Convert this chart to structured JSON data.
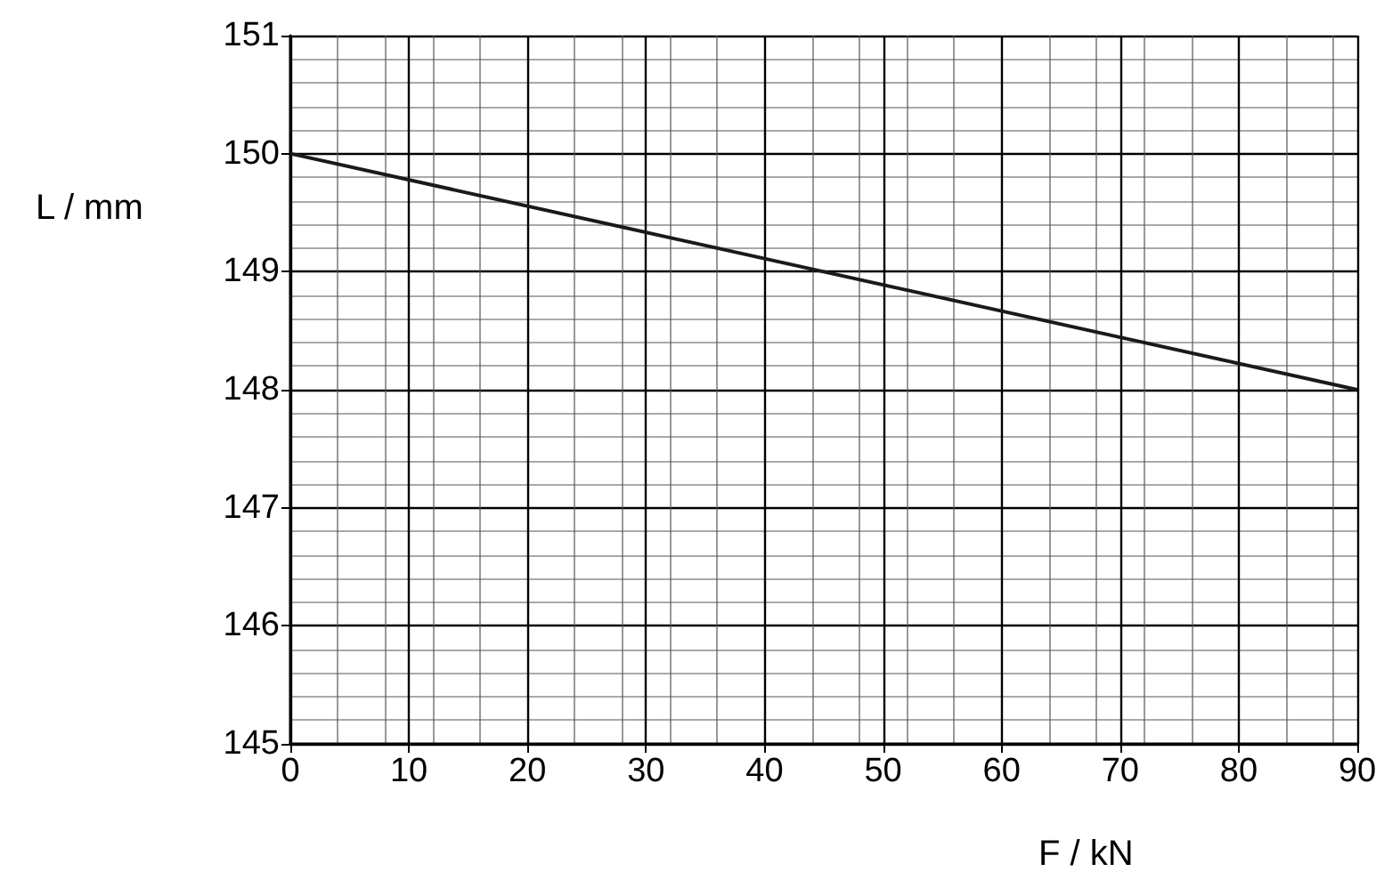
{
  "chart_data": {
    "type": "line",
    "xlabel": "F / kN",
    "ylabel": "L / mm",
    "x": [
      0,
      90
    ],
    "series": [
      {
        "color": "#1a1a1a",
        "values": [
          150,
          148
        ]
      }
    ],
    "xlim": [
      0,
      90
    ],
    "xticks": [
      0,
      10,
      20,
      30,
      40,
      50,
      60,
      70,
      80,
      90
    ],
    "ylim": [
      145,
      151
    ],
    "yticks": [
      145,
      146,
      147,
      148,
      149,
      150,
      151
    ],
    "grid": true,
    "marker": "none",
    "line_style": "solid"
  }
}
